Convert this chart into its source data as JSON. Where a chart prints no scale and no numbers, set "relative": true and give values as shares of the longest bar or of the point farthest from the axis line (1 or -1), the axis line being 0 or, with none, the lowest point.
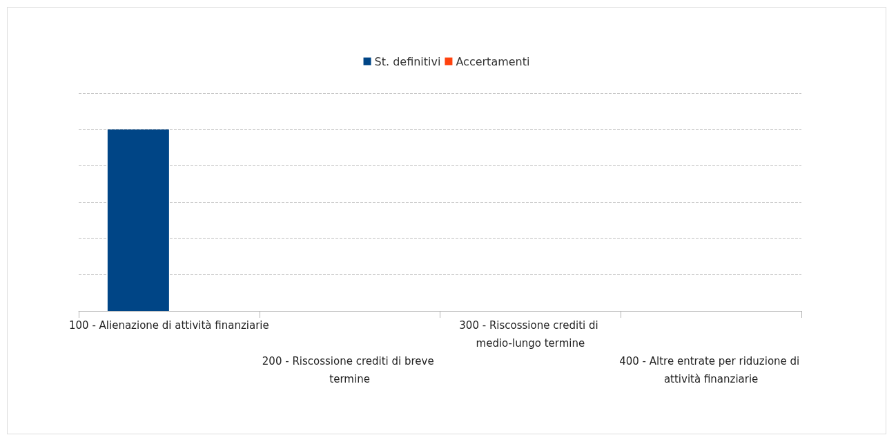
{
  "chart_data": {
    "type": "bar",
    "relative": true,
    "grid": "y",
    "legend": "top",
    "categories": [
      "100 - Alienazione di attività finanziarie",
      "200 - Riscossione crediti di breve termine",
      "300 - Riscossione crediti di medio-lungo termine",
      "400 - Altre entrate per riduzione di attività finanziarie"
    ],
    "series": [
      {
        "name": "St. definitivi",
        "color": "#004586",
        "values": [
          1,
          0,
          0,
          0
        ]
      },
      {
        "name": "Accertamenti",
        "color": "#ff420e",
        "values": [
          0,
          0,
          0,
          0
        ]
      }
    ]
  }
}
